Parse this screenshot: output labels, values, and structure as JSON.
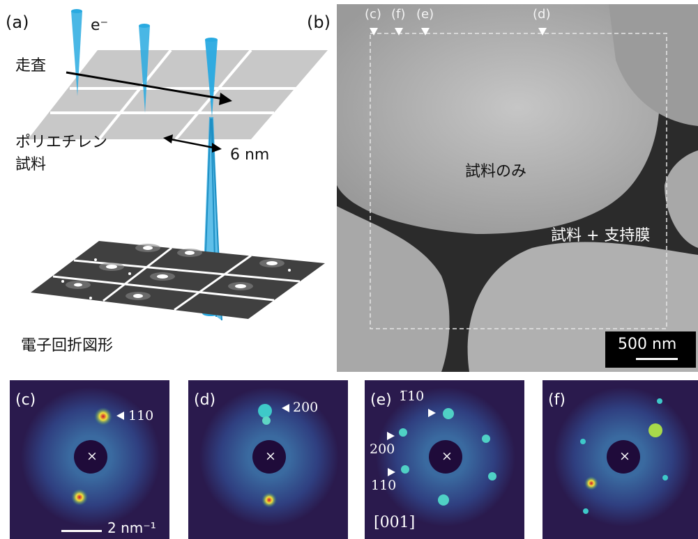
{
  "panel_a": {
    "label": "(a)",
    "electron_label": "e⁻",
    "scan_label": "走査",
    "sample_label_line1": "ポリエチレン",
    "sample_label_line2": "試料",
    "distance_label": "6 nm",
    "diffraction_label": "電子回折図形"
  },
  "panel_b": {
    "label": "(b)",
    "markers": [
      "(c)",
      "(f)",
      "(e)",
      "(d)"
    ],
    "sample_only_label": "試料のみ",
    "sample_film_label": "試料 + 支持膜",
    "scale_bar": "500 nm"
  },
  "panels_bottom": [
    {
      "label": "(c)",
      "indices": [
        "110"
      ],
      "scale": "2 nm⁻¹"
    },
    {
      "label": "(d)",
      "indices": [
        "200"
      ]
    },
    {
      "label": "(e)",
      "indices": [
        "1̅10",
        "200",
        "110"
      ],
      "zone_axis": "[001]"
    },
    {
      "label": "(f)",
      "indices": []
    }
  ],
  "center_mark": "×",
  "colors": {
    "electron_beam": "#29aae1",
    "pattern_bg": "#2a1a4d",
    "grid": "#c8c8c8"
  }
}
